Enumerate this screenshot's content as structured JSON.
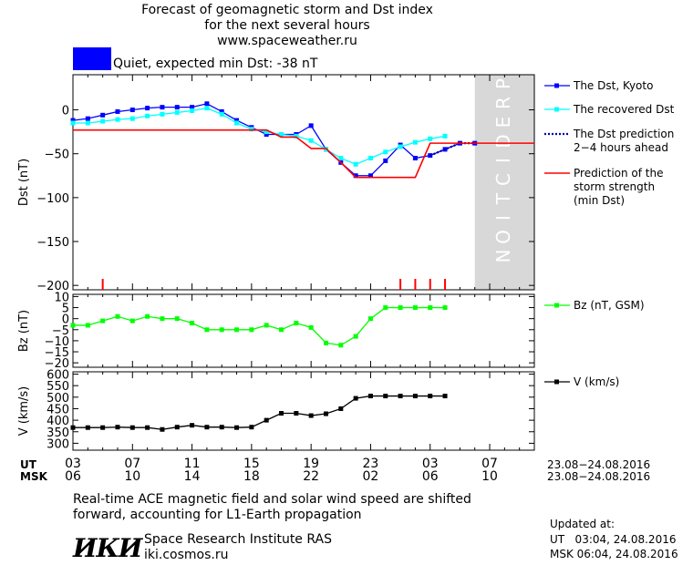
{
  "header": {
    "title_line1": "Forecast of geomagnetic storm and Dst index",
    "title_line2": "for the next several hours",
    "site": "www.spaceweather.ru",
    "status_color": "#0000ff",
    "status_text": "Quiet, expected min Dst: -38 nT"
  },
  "footer": {
    "note_line1": "Real-time ACE magnetic field and solar wind speed are shifted",
    "note_line2": "forward, accounting for L1-Earth propagation",
    "logo_text": "ИКИ",
    "institute": "Space Research Institute RAS",
    "institute_url": "iki.cosmos.ru",
    "updated_label": "Updated at:",
    "updated_ut": "UT   03:04, 24.08.2016",
    "updated_msk": "MSK 06:04, 24.08.2016"
  },
  "chart_data": [
    {
      "type": "line",
      "ylabel": "Dst (nT)",
      "ylim": [
        -205,
        40
      ],
      "yticks": [
        0,
        -50,
        -100,
        -150,
        -200
      ],
      "ytick_labels": [
        "0",
        "−50",
        "−100",
        "−150",
        "−200"
      ],
      "prediction_band": {
        "label": "PREDICTION",
        "x_start": 27.0,
        "x_end": 31.0,
        "color": "#d8d8d8"
      },
      "series": [
        {
          "name": "The Dst, Kyoto",
          "color": "#0000ff",
          "marker": "square",
          "x": [
            0,
            1,
            2,
            3,
            4,
            5,
            6,
            7,
            8,
            9,
            10,
            11,
            12,
            13,
            14,
            15,
            16,
            17,
            18,
            19,
            20,
            21,
            22,
            23,
            24,
            25,
            26,
            27
          ],
          "y": [
            -12,
            -10,
            -6,
            -2,
            0,
            2,
            3,
            3,
            3,
            7,
            -2,
            -12,
            -20,
            -28,
            -28,
            -28,
            -18,
            -45,
            -60,
            -75,
            -75,
            -58,
            -40,
            -55,
            -52,
            -45,
            -38,
            -38
          ]
        },
        {
          "name": "The recovered Dst",
          "color": "#00ffff",
          "marker": "square",
          "x": [
            0,
            1,
            2,
            3,
            4,
            5,
            6,
            7,
            8,
            9,
            10,
            11,
            12,
            13,
            14,
            15,
            16,
            17,
            18,
            19,
            20,
            21,
            22,
            23,
            24,
            25
          ],
          "y": [
            -15,
            -15,
            -13,
            -11,
            -10,
            -7,
            -5,
            -3,
            -1,
            2,
            -5,
            -15,
            -22,
            -25,
            -28,
            -30,
            -35,
            -45,
            -55,
            -62,
            -55,
            -48,
            -42,
            -37,
            -33,
            -30
          ]
        },
        {
          "name": "The Dst prediction",
          "name2": "2−4 hours ahead",
          "color": "#0000aa",
          "dashed": true,
          "x": [
            24,
            25,
            26,
            27
          ],
          "y": [
            -52,
            -45,
            -38,
            -38
          ]
        },
        {
          "name": "Prediction of the",
          "name2": "storm strength",
          "name3": "(min Dst)",
          "color": "#ff0000",
          "step": true,
          "x": [
            0,
            13,
            14,
            15,
            16,
            17,
            18,
            19,
            20,
            21,
            22,
            23,
            24,
            25,
            26,
            27,
            28,
            29,
            30,
            31
          ],
          "y": [
            -23,
            -23,
            -31,
            -31,
            -44,
            -44,
            -60,
            -77,
            -77,
            -77,
            -77,
            -77,
            -38,
            -38,
            -38,
            -38,
            -38,
            -38,
            -38,
            -38
          ]
        }
      ],
      "event_markers_x": [
        2,
        22,
        23,
        24,
        25
      ]
    },
    {
      "type": "line",
      "ylabel": "Bz (nT)",
      "ylim": [
        -22,
        11
      ],
      "yticks": [
        10,
        5,
        0,
        -5,
        -10,
        -15,
        -20
      ],
      "ytick_labels": [
        "10",
        "5",
        "0",
        "−5",
        "−10",
        "−15",
        "−20"
      ],
      "series": [
        {
          "name": "Bz (nT, GSM)",
          "color": "#00ff00",
          "marker": "square",
          "x": [
            0,
            1,
            2,
            3,
            4,
            5,
            6,
            7,
            8,
            9,
            10,
            11,
            12,
            13,
            14,
            15,
            16,
            17,
            18,
            19,
            20,
            21,
            22,
            23,
            24,
            25
          ],
          "y": [
            -3,
            -3,
            -1,
            1,
            -1,
            1,
            0,
            0,
            -2,
            -5,
            -5,
            -5,
            -5,
            -3,
            -5,
            -2,
            -4,
            -11,
            -12,
            -8,
            0,
            5,
            5,
            5,
            5,
            5
          ]
        }
      ]
    },
    {
      "type": "line",
      "ylabel": "V (km/s)",
      "ylim": [
        270,
        610
      ],
      "yticks": [
        600,
        550,
        500,
        450,
        400,
        350,
        300
      ],
      "ytick_labels": [
        "600",
        "550",
        "500",
        "450",
        "400",
        "350",
        "300"
      ],
      "series": [
        {
          "name": "V (km/s)",
          "color": "#000000",
          "marker": "square",
          "x": [
            0,
            1,
            2,
            3,
            4,
            5,
            6,
            7,
            8,
            9,
            10,
            11,
            12,
            13,
            14,
            15,
            16,
            17,
            18,
            19,
            20,
            21,
            22,
            23,
            24,
            25
          ],
          "y": [
            368,
            368,
            368,
            370,
            368,
            368,
            360,
            370,
            378,
            370,
            370,
            368,
            370,
            400,
            430,
            430,
            420,
            428,
            450,
            495,
            505,
            505,
            505,
            505,
            505,
            505
          ]
        }
      ]
    }
  ],
  "x_axis": {
    "ut_label": "UT",
    "msk_label": "MSK",
    "ticks_x": [
      0,
      4,
      8,
      12,
      16,
      20,
      24,
      28
    ],
    "ut_ticks": [
      "03",
      "07",
      "11",
      "15",
      "19",
      "23",
      "03",
      "07"
    ],
    "msk_ticks": [
      "06",
      "10",
      "14",
      "18",
      "22",
      "02",
      "06",
      "10"
    ],
    "ut_dates": "23.08−24.08.2016",
    "msk_dates": "23.08−24.08.2016",
    "xlim": [
      0,
      31
    ]
  }
}
